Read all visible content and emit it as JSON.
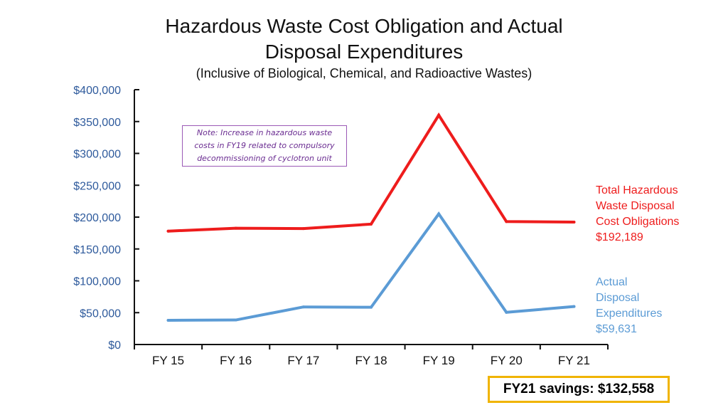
{
  "chart_data": {
    "type": "line",
    "title": "Hazardous Waste Cost Obligation and Actual Disposal Expenditures",
    "title_line1": "Hazardous Waste Cost Obligation and Actual",
    "title_line2": "Disposal Expenditures",
    "subtitle": "(Inclusive of Biological, Chemical, and Radioactive Wastes)",
    "categories": [
      "FY 15",
      "FY 16",
      "FY 17",
      "FY 18",
      "FY 19",
      "FY 20",
      "FY 21"
    ],
    "y_ticks": [
      0,
      50000,
      100000,
      150000,
      200000,
      250000,
      300000,
      350000,
      400000
    ],
    "y_tick_labels": [
      "$0",
      "$50,000",
      "$100,000",
      "$150,000",
      "$200,000",
      "$250,000",
      "$300,000",
      "$350,000",
      "$400,000"
    ],
    "ylim": [
      0,
      400000
    ],
    "grid": false,
    "series": [
      {
        "label_lines": [
          "Total Hazardous",
          "Waste Disposal",
          "Cost Obligations",
          "$192,189"
        ],
        "color": "#ee1c1c",
        "values": [
          178000,
          182500,
          182000,
          189000,
          360000,
          193000,
          192189
        ]
      },
      {
        "label_lines": [
          "Actual",
          "Disposal",
          "Expenditures",
          "$59,631"
        ],
        "color": "#5b9bd5",
        "values": [
          38000,
          38500,
          59000,
          58500,
          205000,
          50500,
          59631
        ]
      }
    ],
    "annotation": {
      "lines": [
        "Note: Increase in hazardous waste",
        "costs in FY19 related to compulsory",
        "decommissioning of cyclotron unit"
      ]
    },
    "savings_text": "FY21 savings: $132,558"
  }
}
